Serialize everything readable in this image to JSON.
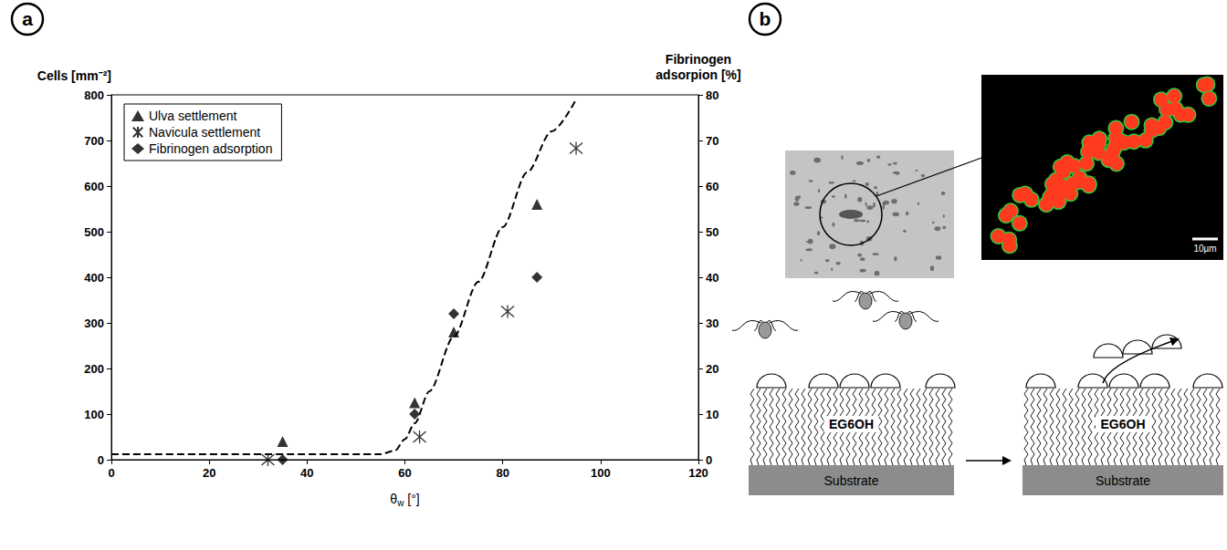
{
  "chart_data": {
    "type": "scatter",
    "xlabel": "θw [°]",
    "ylabel": "Cells [mm⁻²]",
    "y2label": "Fibrinogen adsorpion [%]",
    "xlim": [
      0,
      120
    ],
    "xticks": [
      0,
      20,
      40,
      60,
      80,
      100,
      120
    ],
    "ylim": [
      0,
      800
    ],
    "yticks": [
      0,
      100,
      200,
      300,
      400,
      500,
      600,
      700,
      800
    ],
    "y2lim": [
      0,
      80
    ],
    "y2ticks": [
      0,
      10,
      20,
      30,
      40,
      50,
      60,
      70,
      80
    ],
    "grid": false,
    "legend": "upper left",
    "series": [
      {
        "name": "Ulva settlement",
        "type": "scatter",
        "marker": "triangle",
        "color": "#000000",
        "x": [
          35,
          62,
          70,
          87
        ],
        "values": [
          40,
          125,
          280,
          560
        ]
      },
      {
        "name": "Navicula settlement",
        "type": "scatter",
        "marker": "asterisk",
        "color": "#000000",
        "x": [
          32,
          63,
          81,
          95
        ],
        "values": [
          0,
          50,
          325,
          683
        ]
      },
      {
        "name": "Fibrinogen adsorption",
        "type": "scatter",
        "marker": "diamond",
        "color": "#000000",
        "axis": "y2",
        "x": [
          35,
          62,
          70,
          87
        ],
        "values": [
          0,
          10,
          32,
          40
        ]
      },
      {
        "type": "line",
        "line_style": "dashed",
        "color": "#000000",
        "x": [
          0,
          55,
          58,
          60,
          62,
          65,
          70,
          75,
          80,
          85,
          90,
          95
        ],
        "values": [
          12,
          12,
          20,
          45,
          80,
          150,
          270,
          390,
          510,
          630,
          720,
          790
        ]
      }
    ]
  },
  "panels": [
    "a",
    "b"
  ],
  "diagram": {
    "coatings": [
      "EG6OH",
      "EG6OH"
    ],
    "substrates": [
      "Substrate",
      "Substrate"
    ],
    "scale_bar": "10µm"
  }
}
